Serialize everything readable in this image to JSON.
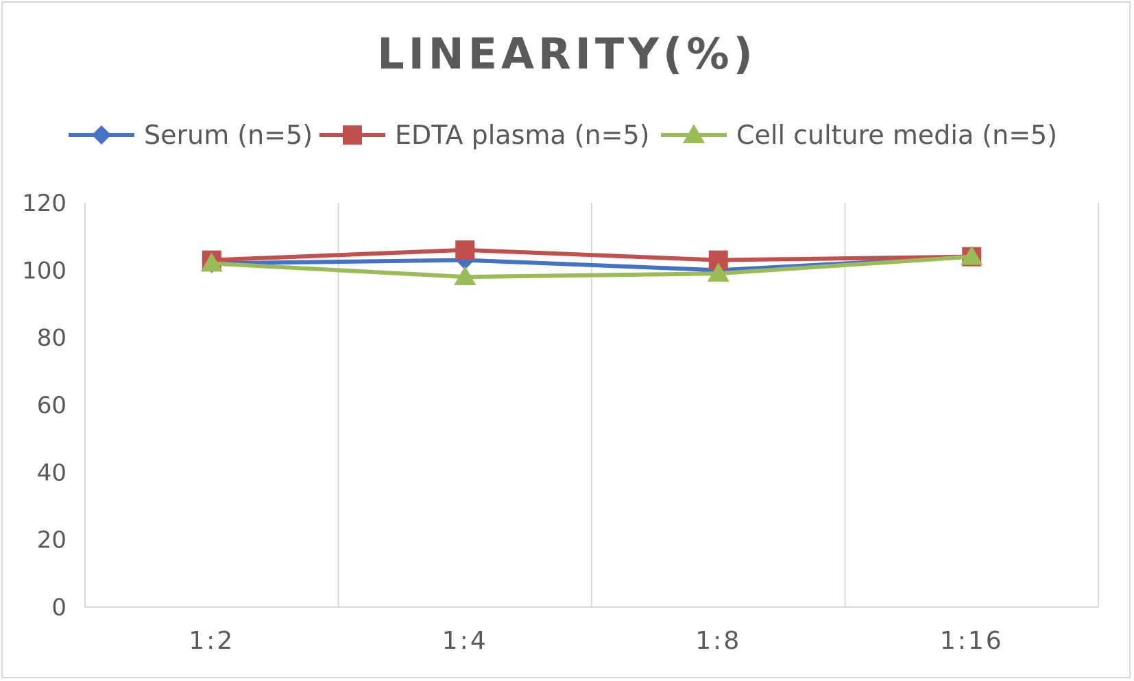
{
  "chart_data": {
    "type": "line",
    "title": "LINEARITY(%)",
    "categories": [
      "1:2",
      "1:4",
      "1:8",
      "1:16"
    ],
    "series": [
      {
        "name": "Serum (n=5)",
        "color": "#4472c4",
        "marker": "diamond",
        "values": [
          102,
          103,
          100,
          104
        ]
      },
      {
        "name": "EDTA plasma (n=5)",
        "color": "#c0504d",
        "marker": "square",
        "values": [
          103,
          106,
          103,
          104
        ]
      },
      {
        "name": "Cell culture media (n=5)",
        "color": "#9bbb59",
        "marker": "triangle",
        "values": [
          102,
          98,
          99,
          104
        ]
      }
    ],
    "ylim": [
      0,
      120
    ],
    "yticks": [
      0,
      20,
      40,
      60,
      80,
      100,
      120
    ],
    "grid": "vertical",
    "legend": "top"
  }
}
